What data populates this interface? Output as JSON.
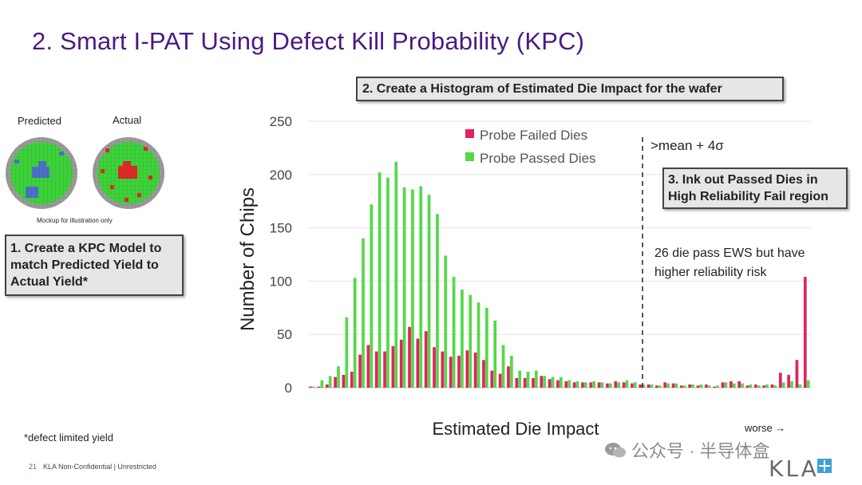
{
  "slide": {
    "title": "2. Smart I-PAT Using Defect Kill Probability (KPC)",
    "footnote": "*defect limited yield",
    "page_number": "21",
    "footer_text": "KLA Non-Confidential | Unrestricted",
    "watermark": "公众号 · 半导体盒",
    "logo": "KLA"
  },
  "left_panel": {
    "predicted_label": "Predicted",
    "actual_label": "Actual",
    "mockup_note": "Mockup for illustration only",
    "step1": "1. Create a KPC Model to match Predicted Yield to Actual Yield*"
  },
  "colors": {
    "failed": "#e0245e",
    "passed": "#55d84a",
    "title": "#4b1a82"
  },
  "chart_data": {
    "type": "bar",
    "title": "2. Create a Histogram of Estimated Die Impact for the wafer",
    "xlabel": "Estimated Die Impact",
    "ylabel": "Number of Chips",
    "ylim": [
      0,
      250
    ],
    "yticks": [
      0,
      50,
      100,
      150,
      200,
      250
    ],
    "grid": true,
    "legend_position": "top-center",
    "series": [
      {
        "name": "Probe Failed Dies",
        "color": "#e0245e",
        "values": [
          1,
          1,
          3,
          10,
          12,
          15,
          31,
          40,
          34,
          34,
          39,
          45,
          57,
          46,
          53,
          38,
          34,
          29,
          30,
          35,
          33,
          26,
          16,
          13,
          20,
          9,
          9,
          9,
          11,
          8,
          7,
          6,
          5,
          5,
          5,
          5,
          4,
          6,
          5,
          4,
          3,
          3,
          2,
          5,
          4,
          2,
          3,
          2,
          3,
          1,
          5,
          6,
          6,
          2,
          3,
          2,
          3,
          14,
          12,
          26,
          104
        ]
      },
      {
        "name": "Probe Passed Dies",
        "color": "#55d84a",
        "values": [
          1,
          7,
          11,
          20,
          66,
          103,
          140,
          172,
          202,
          197,
          212,
          188,
          186,
          189,
          181,
          163,
          124,
          104,
          92,
          87,
          80,
          75,
          63,
          40,
          30,
          16,
          15,
          16,
          11,
          10,
          10,
          7,
          6,
          5,
          6,
          5,
          4,
          5,
          7,
          5,
          3,
          3,
          2,
          4,
          4,
          2,
          3,
          3,
          2,
          2,
          5,
          4,
          4,
          3,
          2,
          3,
          2,
          5,
          6,
          3,
          7
        ]
      }
    ],
    "annotations": {
      "threshold_label": ">mean + 4σ",
      "step3": "3. Ink out Passed Dies in High Reliability Fail region",
      "note": "26 die pass EWS but have higher reliability risk",
      "worse": "worse →"
    }
  }
}
